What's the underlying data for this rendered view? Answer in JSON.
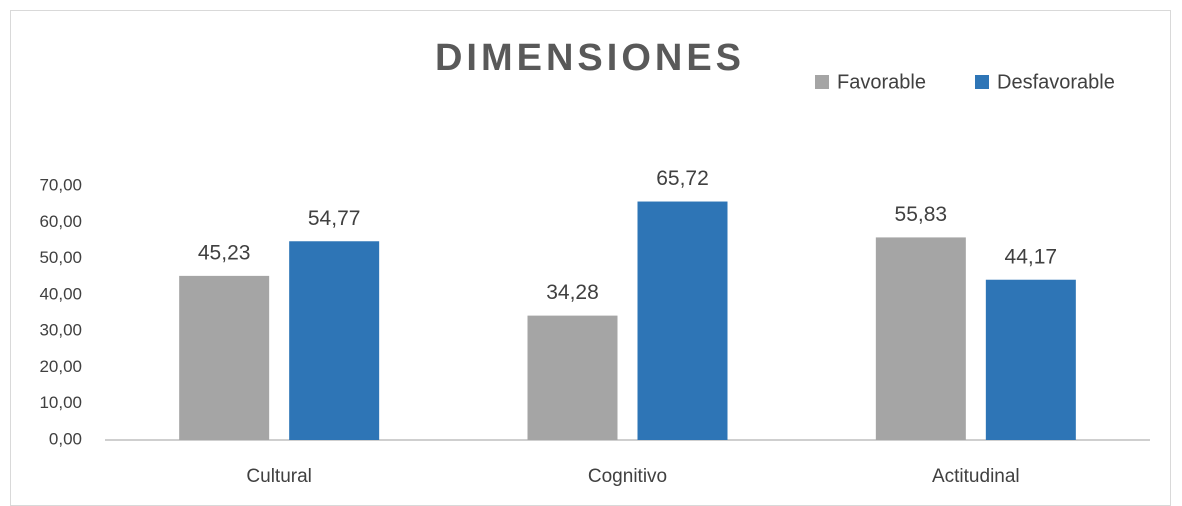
{
  "chart_data": {
    "type": "bar",
    "title": "DIMENSIONES",
    "categories": [
      "Cultural",
      "Cognitivo",
      "Actitudinal"
    ],
    "series": [
      {
        "name": "Favorable",
        "color": "#a5a5a5",
        "values": [
          45.23,
          34.28,
          55.83
        ],
        "value_labels": [
          "45,23",
          "34,28",
          "55,83"
        ]
      },
      {
        "name": "Desfavorable",
        "color": "#2e75b6",
        "values": [
          54.77,
          65.72,
          44.17
        ],
        "value_labels": [
          "54,77",
          "65,72",
          "44,17"
        ]
      }
    ],
    "ylim": [
      0,
      70
    ],
    "yticks": [
      {
        "value": 0,
        "label": "0,00"
      },
      {
        "value": 10,
        "label": "10,00"
      },
      {
        "value": 20,
        "label": "20,00"
      },
      {
        "value": 30,
        "label": "30,00"
      },
      {
        "value": 40,
        "label": "40,00"
      },
      {
        "value": 50,
        "label": "50,00"
      },
      {
        "value": 60,
        "label": "60,00"
      },
      {
        "value": 70,
        "label": "70,00"
      }
    ],
    "grid": false,
    "legend": "top-right"
  }
}
